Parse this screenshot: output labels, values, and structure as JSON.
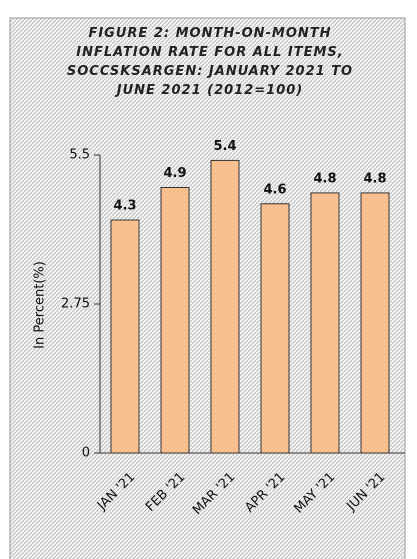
{
  "chart_data": {
    "type": "bar",
    "title": "FIGURE 2: MONTH-ON-MONTH INFLATION RATE FOR ALL ITEMS, SOCCSKSARGEN: JANUARY 2021 TO JUNE 2021 (2012=100)",
    "y_label": "In Percent(%)",
    "categories": [
      "JAN '21",
      "FEB '21",
      "MAR '21",
      "APR '21",
      "MAY '21",
      "JUN '21"
    ],
    "values": [
      4.3,
      4.9,
      5.4,
      4.6,
      4.8,
      4.8
    ],
    "color": "#f9c08f",
    "ylim": [
      0,
      5.5
    ],
    "yticks": [
      0,
      2.75,
      5.5
    ],
    "grid": false
  }
}
